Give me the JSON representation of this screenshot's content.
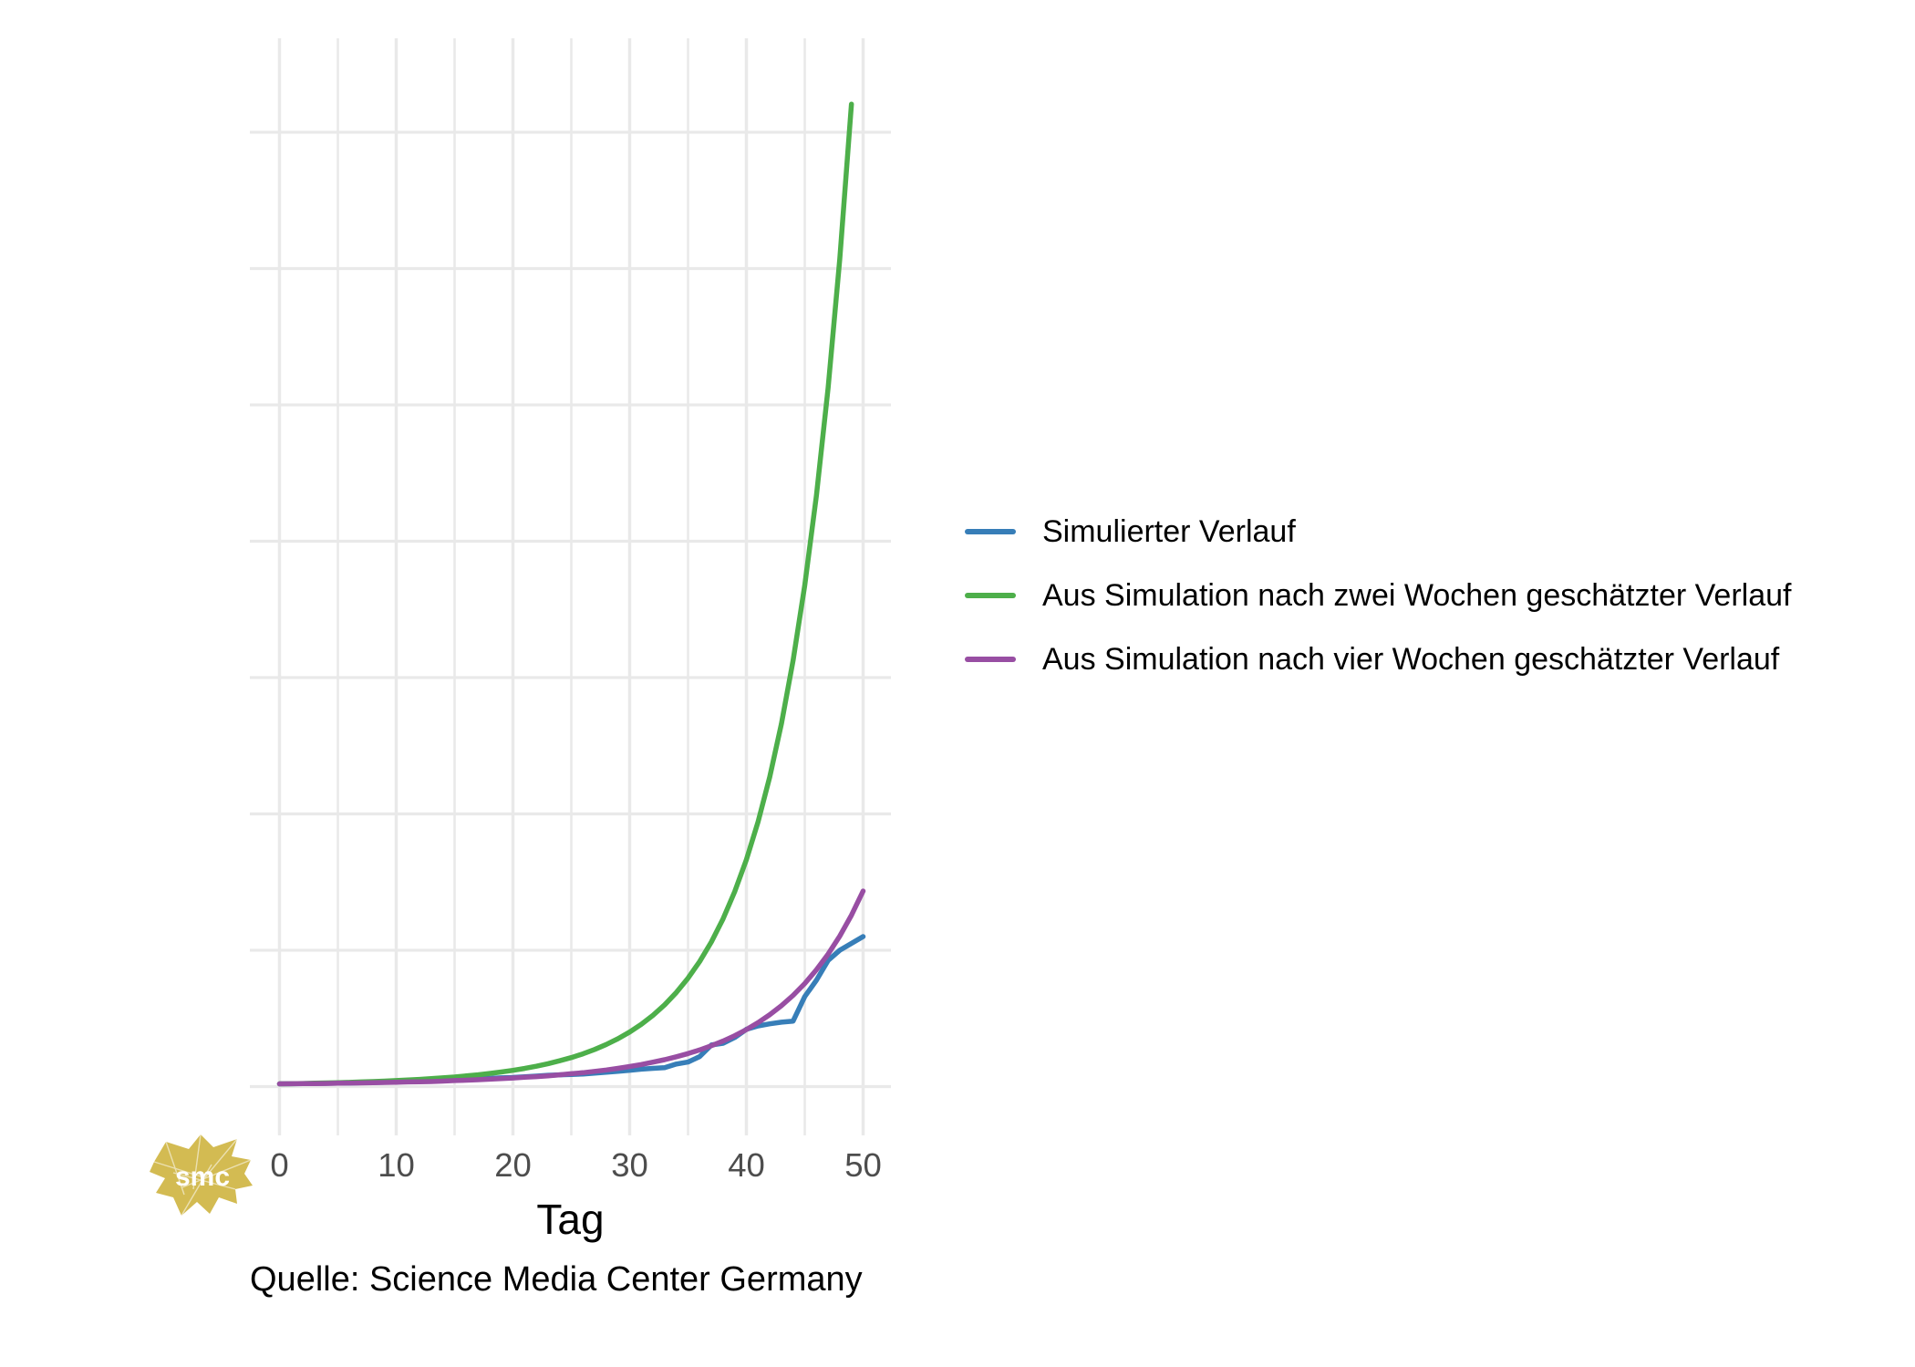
{
  "caption": "Quelle: Science Media Center Germany",
  "logo": {
    "text": "smc",
    "color": "#D3BB52"
  },
  "axis": {
    "x_title": "Tag",
    "x_tick_labels": [
      "0",
      "10",
      "20",
      "30",
      "40",
      "50"
    ],
    "y_tick_labels_hidden": true
  },
  "colors": {
    "grid": "#E9E9E9",
    "tick_label": "#4D4D4D",
    "text": "#000000",
    "background": "#FFFFFF"
  },
  "chart_data": {
    "type": "line",
    "title": "",
    "xlabel": "Tag",
    "ylabel": "",
    "xlim": [
      -2.5,
      52.5
    ],
    "ylim": [
      -0.36,
      7.69
    ],
    "grid": "on",
    "legend_position": "right",
    "x_ticks": [
      0,
      10,
      20,
      30,
      40,
      50
    ],
    "x_gridlines": {
      "major": [
        0,
        10,
        20,
        30,
        40,
        50
      ],
      "minor": [
        5,
        15,
        25,
        35,
        45
      ]
    },
    "y_gridline_values": [
      0,
      1,
      2,
      3,
      4,
      5,
      6,
      7
    ],
    "y_units_note": "y-axis has no visible labels; values are relative units (one horizontal gridline spacing = 1)",
    "series": [
      {
        "name": "Simulierter Verlauf",
        "color": "#377EB8",
        "day_start": 0,
        "values": [
          0.02,
          0.021,
          0.022,
          0.023,
          0.024,
          0.025,
          0.026,
          0.028,
          0.03,
          0.032,
          0.034,
          0.036,
          0.039,
          0.042,
          0.045,
          0.048,
          0.052,
          0.056,
          0.06,
          0.064,
          0.067,
          0.072,
          0.077,
          0.083,
          0.086,
          0.088,
          0.092,
          0.098,
          0.105,
          0.112,
          0.12,
          0.128,
          0.134,
          0.139,
          0.165,
          0.18,
          0.22,
          0.305,
          0.318,
          0.36,
          0.42,
          0.445,
          0.46,
          0.472,
          0.48,
          0.66,
          0.78,
          0.925,
          1.0,
          1.05,
          1.1
        ]
      },
      {
        "name": "Aus Simulation nach zwei Wochen geschätzter Verlauf",
        "color": "#4DAF4A",
        "day_start": 0,
        "values": [
          0.02,
          0.021,
          0.023,
          0.025,
          0.027,
          0.029,
          0.031,
          0.034,
          0.037,
          0.04,
          0.044,
          0.048,
          0.053,
          0.058,
          0.064,
          0.07,
          0.078,
          0.086,
          0.096,
          0.107,
          0.119,
          0.133,
          0.149,
          0.168,
          0.189,
          0.213,
          0.24,
          0.272,
          0.309,
          0.351,
          0.4,
          0.457,
          0.523,
          0.6,
          0.69,
          0.795,
          0.918,
          1.061,
          1.23,
          1.43,
          1.664,
          1.942,
          2.271,
          2.661,
          3.125,
          3.677,
          4.336,
          5.124,
          6.07,
          7.206
        ]
      },
      {
        "name": "Aus Simulation nach vier Wochen geschätzter Verlauf",
        "color": "#984EA3",
        "day_start": 0,
        "values": [
          0.02,
          0.021,
          0.022,
          0.022,
          0.023,
          0.025,
          0.026,
          0.027,
          0.028,
          0.03,
          0.032,
          0.034,
          0.035,
          0.037,
          0.04,
          0.044,
          0.047,
          0.05,
          0.054,
          0.058,
          0.063,
          0.068,
          0.073,
          0.079,
          0.086,
          0.094,
          0.102,
          0.112,
          0.122,
          0.134,
          0.147,
          0.162,
          0.179,
          0.197,
          0.219,
          0.242,
          0.269,
          0.3,
          0.334,
          0.373,
          0.418,
          0.469,
          0.527,
          0.593,
          0.669,
          0.756,
          0.857,
          0.971,
          1.104,
          1.257,
          1.434
        ]
      }
    ]
  }
}
